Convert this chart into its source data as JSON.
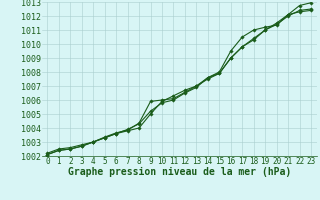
{
  "xlabel": "Graphe pression niveau de la mer (hPa)",
  "xlim": [
    -0.5,
    23.5
  ],
  "ylim": [
    1002,
    1013
  ],
  "yticks": [
    1002,
    1003,
    1004,
    1005,
    1006,
    1007,
    1008,
    1009,
    1010,
    1011,
    1012,
    1013
  ],
  "xticks": [
    0,
    1,
    2,
    3,
    4,
    5,
    6,
    7,
    8,
    9,
    10,
    11,
    12,
    13,
    14,
    15,
    16,
    17,
    18,
    19,
    20,
    21,
    22,
    23
  ],
  "background_color": "#d8f5f5",
  "grid_color": "#aacece",
  "line_color": "#1a5c1a",
  "line1": [
    1002.2,
    1002.5,
    1002.6,
    1002.8,
    1003.0,
    1003.3,
    1003.6,
    1003.8,
    1004.0,
    1005.0,
    1005.9,
    1006.3,
    1006.7,
    1007.0,
    1007.5,
    1007.9,
    1009.0,
    1009.8,
    1010.4,
    1011.0,
    1011.4,
    1012.0,
    1012.4,
    1012.5
  ],
  "line2": [
    1002.1,
    1002.4,
    1002.5,
    1002.7,
    1003.0,
    1003.3,
    1003.6,
    1003.9,
    1004.3,
    1005.2,
    1005.8,
    1006.0,
    1006.5,
    1006.9,
    1007.6,
    1007.9,
    1009.0,
    1009.8,
    1010.3,
    1011.0,
    1011.5,
    1012.1,
    1012.3,
    1012.4
  ],
  "line3": [
    1002.1,
    1002.4,
    1002.5,
    1002.7,
    1003.0,
    1003.35,
    1003.65,
    1003.85,
    1004.35,
    1005.9,
    1006.0,
    1006.1,
    1006.55,
    1007.0,
    1007.6,
    1008.0,
    1009.5,
    1010.5,
    1011.0,
    1011.2,
    1011.35,
    1012.1,
    1012.75,
    1012.95
  ],
  "marker": "D",
  "marker_size": 1.8,
  "line_width": 0.8,
  "fontsize_xlabel": 7,
  "fontsize_yticks": 6,
  "fontsize_xticks": 5.5
}
